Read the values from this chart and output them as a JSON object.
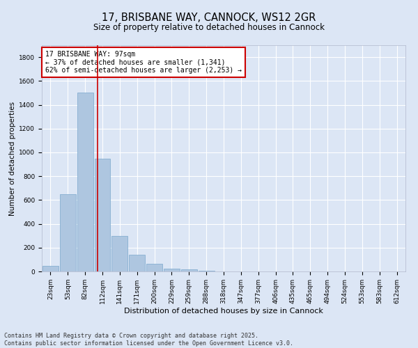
{
  "title": "17, BRISBANE WAY, CANNOCK, WS12 2GR",
  "subtitle": "Size of property relative to detached houses in Cannock",
  "xlabel": "Distribution of detached houses by size in Cannock",
  "ylabel": "Number of detached properties",
  "categories": [
    "23sqm",
    "53sqm",
    "82sqm",
    "112sqm",
    "141sqm",
    "171sqm",
    "200sqm",
    "229sqm",
    "259sqm",
    "288sqm",
    "318sqm",
    "347sqm",
    "377sqm",
    "406sqm",
    "435sqm",
    "465sqm",
    "494sqm",
    "524sqm",
    "553sqm",
    "583sqm",
    "612sqm"
  ],
  "values": [
    45,
    650,
    1500,
    950,
    300,
    140,
    65,
    25,
    15,
    5,
    2,
    0,
    0,
    0,
    0,
    0,
    0,
    0,
    0,
    0,
    0
  ],
  "bar_color": "#aec6e0",
  "bar_edge_color": "#7aa8cc",
  "vline_x": 2.72,
  "annotation_line1": "17 BRISBANE WAY: 97sqm",
  "annotation_line2": "← 37% of detached houses are smaller (1,341)",
  "annotation_line3": "62% of semi-detached houses are larger (2,253) →",
  "annotation_box_facecolor": "#ffffff",
  "annotation_box_edgecolor": "#cc0000",
  "vline_color": "#cc0000",
  "ylim": [
    0,
    1900
  ],
  "yticks": [
    0,
    200,
    400,
    600,
    800,
    1000,
    1200,
    1400,
    1600,
    1800
  ],
  "bg_color": "#dce6f5",
  "grid_color": "#ffffff",
  "footnote1": "Contains HM Land Registry data © Crown copyright and database right 2025.",
  "footnote2": "Contains public sector information licensed under the Open Government Licence v3.0.",
  "title_fontsize": 10.5,
  "subtitle_fontsize": 8.5,
  "xlabel_fontsize": 8,
  "ylabel_fontsize": 7.5,
  "tick_fontsize": 6.5,
  "annotation_fontsize": 7,
  "footnote_fontsize": 6
}
